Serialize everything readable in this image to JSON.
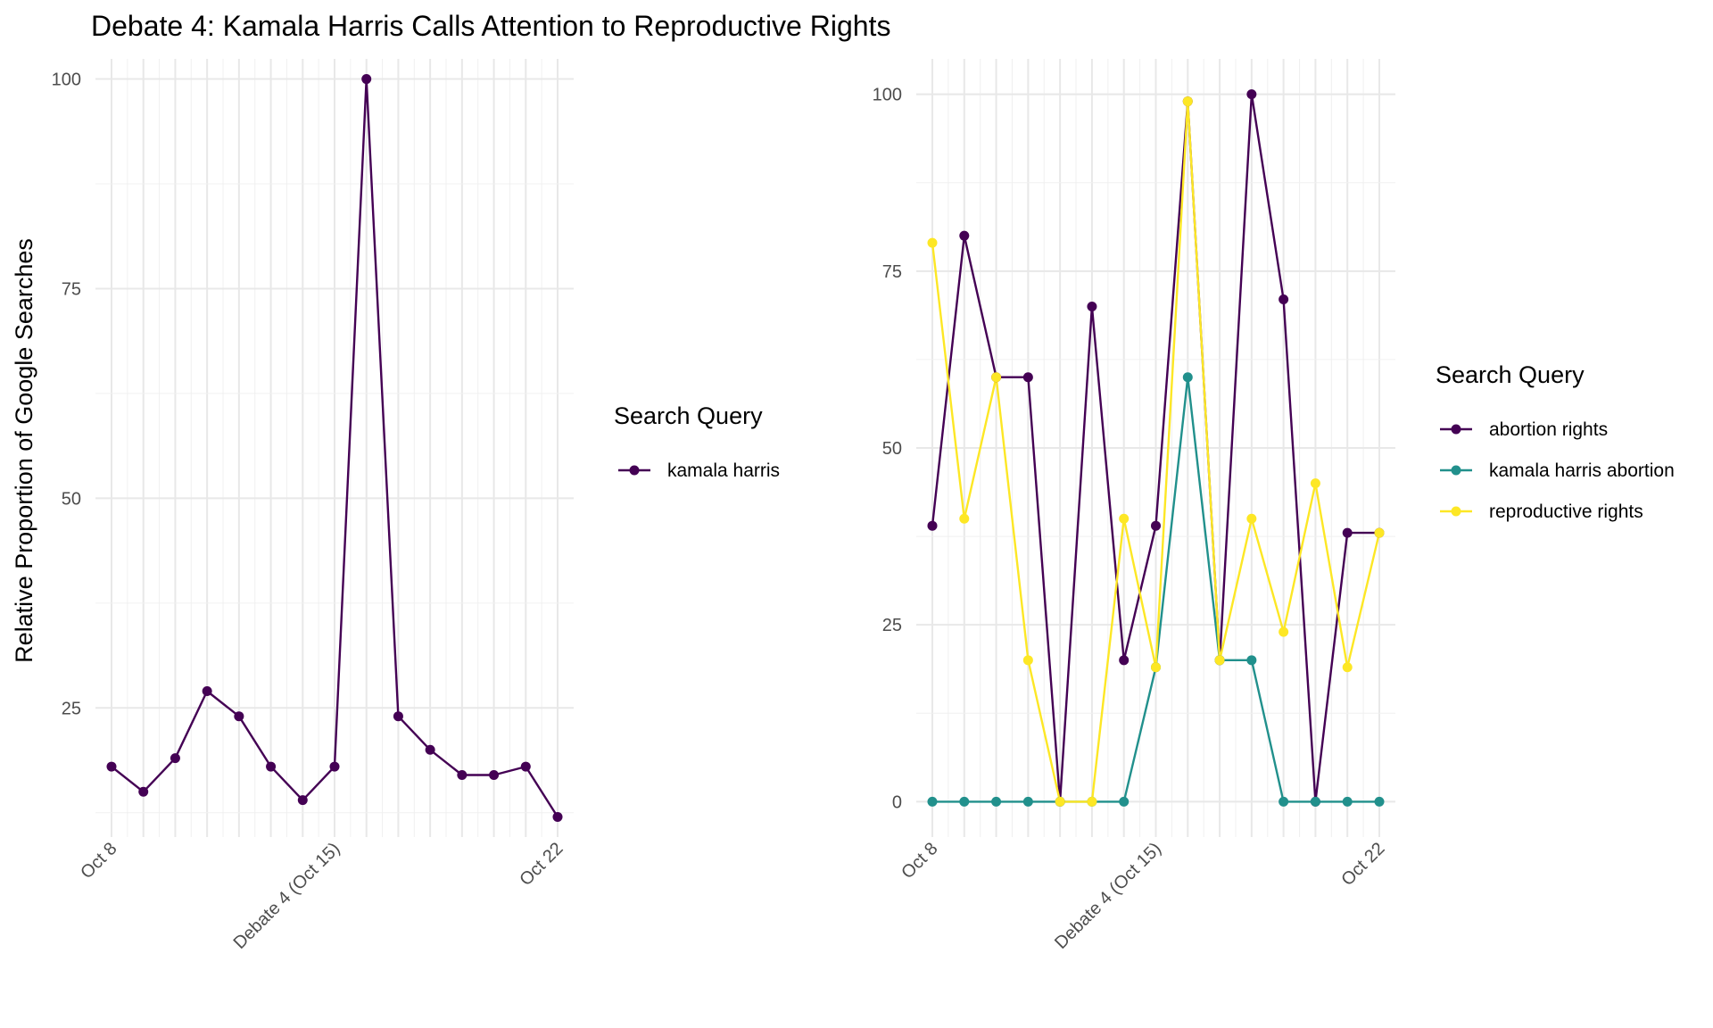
{
  "title": "Debate 4: Kamala Harris Calls Attention to Reproductive Rights",
  "ylabel": "Relative Proportion of Google Searches",
  "legend_title": "Search Query",
  "chart_data": [
    {
      "type": "line",
      "title": "Debate 4: Kamala Harris Calls Attention to Reproductive Rights",
      "ylabel": "Relative Proportion of Google Searches",
      "xlabel": "",
      "x": [
        "Oct 8",
        "Oct 9",
        "Oct 10",
        "Oct 11",
        "Oct 12",
        "Oct 13",
        "Oct 14",
        "Oct 15",
        "Oct 16",
        "Oct 17",
        "Oct 18",
        "Oct 19",
        "Oct 20",
        "Oct 21",
        "Oct 22"
      ],
      "x_tick_labels": [
        {
          "x": "Oct 8",
          "label": "Oct 8"
        },
        {
          "x": "Oct 15",
          "label": "Debate 4 (Oct 15)"
        },
        {
          "x": "Oct 22",
          "label": "Oct 22"
        }
      ],
      "y_ticks": [
        25,
        50,
        75,
        100
      ],
      "ylim": [
        9.6,
        102.4
      ],
      "grid": true,
      "legend_position": "right",
      "legend_title": "Search Query",
      "series": [
        {
          "name": "kamala harris",
          "color": "#440154",
          "values": [
            18,
            15,
            19,
            27,
            24,
            18,
            14,
            18,
            100,
            24,
            20,
            17,
            17,
            18,
            12
          ]
        }
      ]
    },
    {
      "type": "line",
      "title": "",
      "ylabel": "",
      "xlabel": "",
      "x": [
        "Oct 8",
        "Oct 9",
        "Oct 10",
        "Oct 11",
        "Oct 12",
        "Oct 13",
        "Oct 14",
        "Oct 15",
        "Oct 16",
        "Oct 17",
        "Oct 18",
        "Oct 19",
        "Oct 20",
        "Oct 21",
        "Oct 22"
      ],
      "x_tick_labels": [
        {
          "x": "Oct 8",
          "label": "Oct 8"
        },
        {
          "x": "Oct 15",
          "label": "Debate 4 (Oct 15)"
        },
        {
          "x": "Oct 22",
          "label": "Oct 22"
        }
      ],
      "y_ticks": [
        0,
        25,
        50,
        75,
        100
      ],
      "ylim": [
        -5,
        105
      ],
      "grid": true,
      "legend_position": "right",
      "legend_title": "Search Query",
      "series": [
        {
          "name": "abortion rights",
          "color": "#440154",
          "values": [
            39,
            80,
            60,
            60,
            0,
            70,
            20,
            39,
            99,
            20,
            100,
            71,
            0,
            38,
            38
          ]
        },
        {
          "name": "kamala harris abortion",
          "color": "#21908C",
          "values": [
            0,
            0,
            0,
            0,
            0,
            0,
            0,
            19,
            60,
            20,
            20,
            0,
            0,
            0,
            0
          ]
        },
        {
          "name": "reproductive rights",
          "color": "#FDE725",
          "values": [
            79,
            40,
            60,
            20,
            0,
            0,
            40,
            19,
            99,
            20,
            40,
            24,
            45,
            19,
            38
          ]
        }
      ]
    }
  ]
}
